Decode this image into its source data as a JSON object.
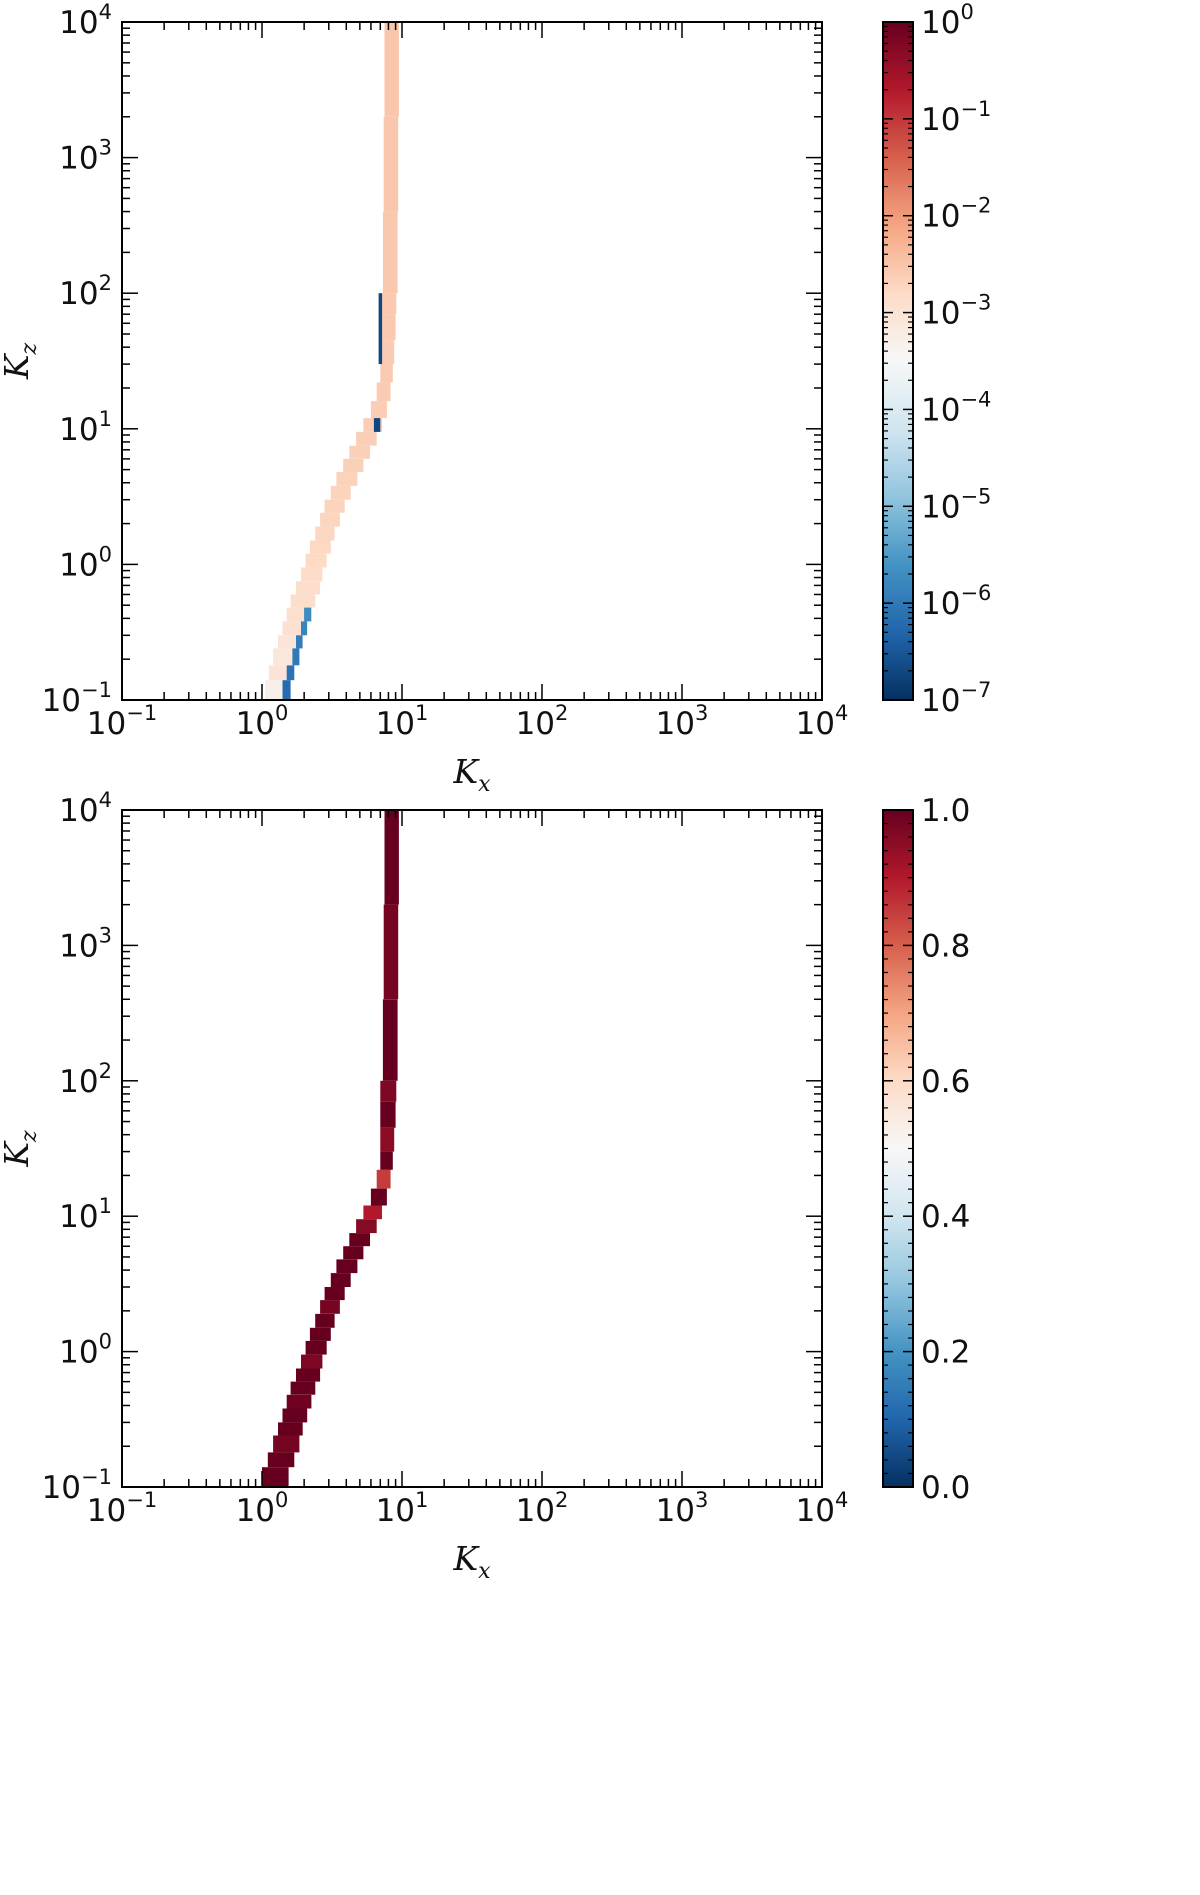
{
  "chart_data": [
    {
      "type": "heatmap",
      "title": "",
      "xlabel": "K",
      "xlabel_sub": "x",
      "ylabel": "K",
      "ylabel_sub": "z",
      "x_scale": "log",
      "y_scale": "log",
      "xlim": [
        0.1,
        10000
      ],
      "ylim": [
        0.1,
        10000
      ],
      "x_ticks": [
        {
          "base": "10",
          "exp": "−1"
        },
        {
          "base": "10",
          "exp": "0"
        },
        {
          "base": "10",
          "exp": "1"
        },
        {
          "base": "10",
          "exp": "2"
        },
        {
          "base": "10",
          "exp": "3"
        },
        {
          "base": "10",
          "exp": "4"
        }
      ],
      "y_ticks": [
        {
          "base": "10",
          "exp": "−1"
        },
        {
          "base": "10",
          "exp": "0"
        },
        {
          "base": "10",
          "exp": "1"
        },
        {
          "base": "10",
          "exp": "2"
        },
        {
          "base": "10",
          "exp": "3"
        },
        {
          "base": "10",
          "exp": "4"
        }
      ],
      "colorbar": {
        "scale": "log",
        "range": [
          1e-07,
          1
        ],
        "colormap": "RdBu_r",
        "ticks": [
          {
            "base": "10",
            "exp": "0"
          },
          {
            "base": "10",
            "exp": "−1"
          },
          {
            "base": "10",
            "exp": "−2"
          },
          {
            "base": "10",
            "exp": "−3"
          },
          {
            "base": "10",
            "exp": "−4"
          },
          {
            "base": "10",
            "exp": "−5"
          },
          {
            "base": "10",
            "exp": "−6"
          },
          {
            "base": "10",
            "exp": "−7"
          }
        ]
      },
      "grid": false,
      "cells": [
        {
          "x": [
            1.05,
            1.5
          ],
          "y": [
            0.1,
            0.14
          ],
          "v": 0.0005
        },
        {
          "x": [
            1.12,
            1.5
          ],
          "y": [
            0.14,
            0.18
          ],
          "v": 0.001
        },
        {
          "x": [
            1.2,
            1.8
          ],
          "y": [
            0.18,
            0.24
          ],
          "v": 0.0008
        },
        {
          "x": [
            1.3,
            1.9
          ],
          "y": [
            0.24,
            0.3
          ],
          "v": 0.0009
        },
        {
          "x": [
            1.4,
            2.1
          ],
          "y": [
            0.3,
            0.38
          ],
          "v": 0.0011
        },
        {
          "x": [
            1.5,
            2.2
          ],
          "y": [
            0.38,
            0.48
          ],
          "v": 0.0012
        },
        {
          "x": [
            1.6,
            2.4
          ],
          "y": [
            0.48,
            0.6
          ],
          "v": 0.0013
        },
        {
          "x": [
            1.75,
            2.6
          ],
          "y": [
            0.6,
            0.75
          ],
          "v": 0.0014
        },
        {
          "x": [
            1.9,
            2.7
          ],
          "y": [
            0.75,
            0.95
          ],
          "v": 0.0015
        },
        {
          "x": [
            2.05,
            2.9
          ],
          "y": [
            0.95,
            1.2
          ],
          "v": 0.0016
        },
        {
          "x": [
            2.2,
            3.1
          ],
          "y": [
            1.2,
            1.5
          ],
          "v": 0.0017
        },
        {
          "x": [
            2.4,
            3.3
          ],
          "y": [
            1.5,
            1.9
          ],
          "v": 0.0018
        },
        {
          "x": [
            2.6,
            3.6
          ],
          "y": [
            1.9,
            2.4
          ],
          "v": 0.0019
        },
        {
          "x": [
            2.8,
            3.9
          ],
          "y": [
            2.4,
            3.0
          ],
          "v": 0.002
        },
        {
          "x": [
            3.1,
            4.3
          ],
          "y": [
            3.0,
            3.8
          ],
          "v": 0.002
        },
        {
          "x": [
            3.4,
            4.8
          ],
          "y": [
            3.8,
            4.8
          ],
          "v": 0.0021
        },
        {
          "x": [
            3.8,
            5.3
          ],
          "y": [
            4.8,
            6.0
          ],
          "v": 0.0022
        },
        {
          "x": [
            4.2,
            5.9
          ],
          "y": [
            6.0,
            7.5
          ],
          "v": 0.0022
        },
        {
          "x": [
            4.7,
            6.6
          ],
          "y": [
            7.5,
            9.5
          ],
          "v": 0.0023
        },
        {
          "x": [
            5.3,
            7.2
          ],
          "y": [
            9.5,
            12
          ],
          "v": 0.0024
        },
        {
          "x": [
            6.0,
            7.8
          ],
          "y": [
            12,
            16
          ],
          "v": 0.0024
        },
        {
          "x": [
            6.6,
            8.3
          ],
          "y": [
            16,
            22
          ],
          "v": 0.0025
        },
        {
          "x": [
            7.0,
            8.6
          ],
          "y": [
            22,
            30
          ],
          "v": 0.0026
        },
        {
          "x": [
            7.0,
            8.8
          ],
          "y": [
            30,
            45
          ],
          "v": 0.0026
        },
        {
          "x": [
            7.0,
            9.0
          ],
          "y": [
            45,
            70
          ],
          "v": 0.0027
        },
        {
          "x": [
            7.0,
            9.1
          ],
          "y": [
            70,
            100
          ],
          "v": 0.0027
        },
        {
          "x": [
            7.3,
            9.3
          ],
          "y": [
            100,
            400
          ],
          "v": 0.0028
        },
        {
          "x": [
            7.4,
            9.4
          ],
          "y": [
            400,
            2000
          ],
          "v": 0.0029
        },
        {
          "x": [
            7.5,
            9.5
          ],
          "y": [
            2000,
            10000
          ],
          "v": 0.003
        },
        {
          "x": [
            1.4,
            1.6
          ],
          "y": [
            0.1,
            0.14
          ],
          "v": 6e-07
        },
        {
          "x": [
            1.5,
            1.7
          ],
          "y": [
            0.14,
            0.18
          ],
          "v": 8e-07
        },
        {
          "x": [
            1.65,
            1.85
          ],
          "y": [
            0.18,
            0.24
          ],
          "v": 1e-06
        },
        {
          "x": [
            1.75,
            1.95
          ],
          "y": [
            0.24,
            0.3
          ],
          "v": 1.2e-06
        },
        {
          "x": [
            1.9,
            2.1
          ],
          "y": [
            0.3,
            0.38
          ],
          "v": 1.5e-06
        },
        {
          "x": [
            2.0,
            2.25
          ],
          "y": [
            0.38,
            0.48
          ],
          "v": 2e-06
        },
        {
          "x": [
            6.3,
            7.0
          ],
          "y": [
            9.5,
            12
          ],
          "v": 2e-07
        },
        {
          "x": [
            6.8,
            7.2
          ],
          "y": [
            30,
            100
          ],
          "v": 2e-07
        }
      ]
    },
    {
      "type": "heatmap",
      "title": "",
      "xlabel": "K",
      "xlabel_sub": "x",
      "ylabel": "K",
      "ylabel_sub": "z",
      "x_scale": "log",
      "y_scale": "log",
      "xlim": [
        0.1,
        10000
      ],
      "ylim": [
        0.1,
        10000
      ],
      "x_ticks": [
        {
          "base": "10",
          "exp": "−1"
        },
        {
          "base": "10",
          "exp": "0"
        },
        {
          "base": "10",
          "exp": "1"
        },
        {
          "base": "10",
          "exp": "2"
        },
        {
          "base": "10",
          "exp": "3"
        },
        {
          "base": "10",
          "exp": "4"
        }
      ],
      "y_ticks": [
        {
          "base": "10",
          "exp": "−1"
        },
        {
          "base": "10",
          "exp": "0"
        },
        {
          "base": "10",
          "exp": "1"
        },
        {
          "base": "10",
          "exp": "2"
        },
        {
          "base": "10",
          "exp": "3"
        },
        {
          "base": "10",
          "exp": "4"
        }
      ],
      "colorbar": {
        "scale": "linear",
        "range": [
          0,
          1
        ],
        "colormap": "RdBu_r",
        "ticks": [
          "1.0",
          "0.8",
          "0.6",
          "0.4",
          "0.2",
          "0.0"
        ]
      },
      "grid": false,
      "cells": [
        {
          "x": [
            1.0,
            1.55
          ],
          "y": [
            0.1,
            0.14
          ],
          "v": 1.0
        },
        {
          "x": [
            1.1,
            1.7
          ],
          "y": [
            0.14,
            0.18
          ],
          "v": 1.0
        },
        {
          "x": [
            1.2,
            1.85
          ],
          "y": [
            0.18,
            0.24
          ],
          "v": 0.98
        },
        {
          "x": [
            1.3,
            1.95
          ],
          "y": [
            0.24,
            0.3
          ],
          "v": 1.0
        },
        {
          "x": [
            1.4,
            2.1
          ],
          "y": [
            0.3,
            0.38
          ],
          "v": 1.0
        },
        {
          "x": [
            1.5,
            2.25
          ],
          "y": [
            0.38,
            0.48
          ],
          "v": 0.99
        },
        {
          "x": [
            1.6,
            2.4
          ],
          "y": [
            0.48,
            0.6
          ],
          "v": 1.0
        },
        {
          "x": [
            1.75,
            2.6
          ],
          "y": [
            0.6,
            0.75
          ],
          "v": 1.0
        },
        {
          "x": [
            1.9,
            2.7
          ],
          "y": [
            0.75,
            0.95
          ],
          "v": 0.97
        },
        {
          "x": [
            2.05,
            2.9
          ],
          "y": [
            0.95,
            1.2
          ],
          "v": 1.0
        },
        {
          "x": [
            2.2,
            3.1
          ],
          "y": [
            1.2,
            1.5
          ],
          "v": 1.0
        },
        {
          "x": [
            2.4,
            3.3
          ],
          "y": [
            1.5,
            1.9
          ],
          "v": 1.0
        },
        {
          "x": [
            2.6,
            3.6
          ],
          "y": [
            1.9,
            2.4
          ],
          "v": 0.98
        },
        {
          "x": [
            2.8,
            3.9
          ],
          "y": [
            2.4,
            3.0
          ],
          "v": 1.0
        },
        {
          "x": [
            3.1,
            4.3
          ],
          "y": [
            3.0,
            3.8
          ],
          "v": 1.0
        },
        {
          "x": [
            3.4,
            4.8
          ],
          "y": [
            3.8,
            4.8
          ],
          "v": 1.0
        },
        {
          "x": [
            3.8,
            5.3
          ],
          "y": [
            4.8,
            6.0
          ],
          "v": 1.0
        },
        {
          "x": [
            4.2,
            5.9
          ],
          "y": [
            6.0,
            7.5
          ],
          "v": 1.0
        },
        {
          "x": [
            4.7,
            6.6
          ],
          "y": [
            7.5,
            9.5
          ],
          "v": 0.96
        },
        {
          "x": [
            5.3,
            7.2
          ],
          "y": [
            9.5,
            12
          ],
          "v": 0.9
        },
        {
          "x": [
            6.0,
            7.8
          ],
          "y": [
            12,
            16
          ],
          "v": 1.0
        },
        {
          "x": [
            6.6,
            8.3
          ],
          "y": [
            16,
            22
          ],
          "v": 0.85
        },
        {
          "x": [
            7.0,
            8.6
          ],
          "y": [
            22,
            30
          ],
          "v": 1.0
        },
        {
          "x": [
            7.0,
            8.8
          ],
          "y": [
            30,
            45
          ],
          "v": 0.95
        },
        {
          "x": [
            7.0,
            9.0
          ],
          "y": [
            45,
            70
          ],
          "v": 1.0
        },
        {
          "x": [
            7.0,
            9.1
          ],
          "y": [
            70,
            100
          ],
          "v": 0.97
        },
        {
          "x": [
            7.3,
            9.3
          ],
          "y": [
            100,
            400
          ],
          "v": 1.0
        },
        {
          "x": [
            7.4,
            9.4
          ],
          "y": [
            400,
            2000
          ],
          "v": 0.98
        },
        {
          "x": [
            7.5,
            9.5
          ],
          "y": [
            2000,
            10000
          ],
          "v": 1.0
        }
      ]
    }
  ]
}
